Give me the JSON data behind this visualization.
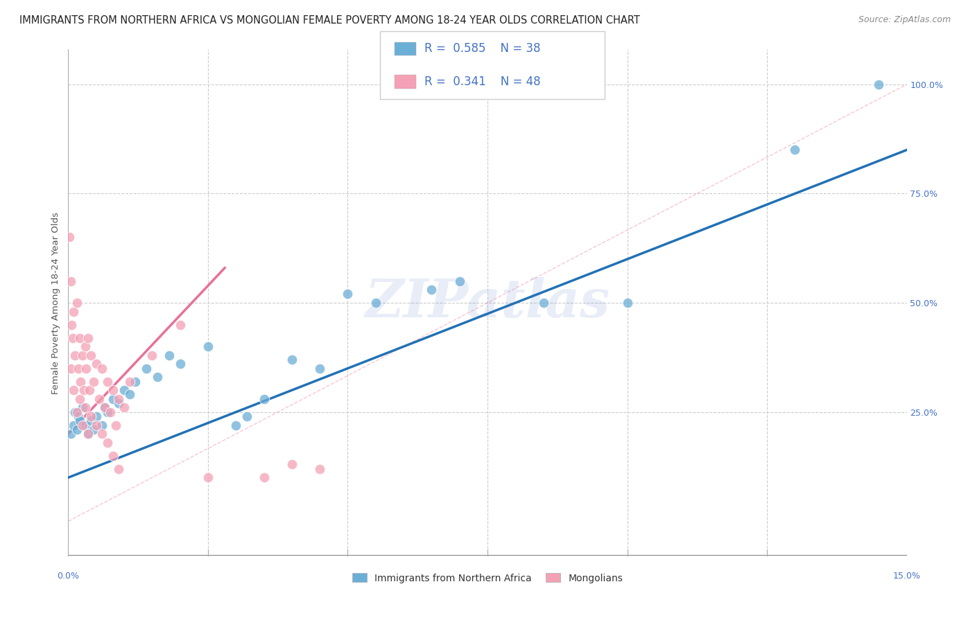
{
  "title": "IMMIGRANTS FROM NORTHERN AFRICA VS MONGOLIAN FEMALE POVERTY AMONG 18-24 YEAR OLDS CORRELATION CHART",
  "source": "Source: ZipAtlas.com",
  "ylabel": "Female Poverty Among 18-24 Year Olds",
  "yaxis_ticks": [
    "100.0%",
    "75.0%",
    "50.0%",
    "25.0%"
  ],
  "yaxis_tick_vals": [
    100,
    75,
    50,
    25
  ],
  "xlim": [
    0,
    15
  ],
  "ylim": [
    -8,
    108
  ],
  "blue_R": 0.585,
  "blue_N": 38,
  "pink_R": 0.341,
  "pink_N": 48,
  "blue_color": "#6baed6",
  "pink_color": "#f4a0b5",
  "blue_label": "Immigrants from Northern Africa",
  "pink_label": "Mongolians",
  "watermark": "ZIPatlas",
  "background_color": "#ffffff",
  "blue_scatter": [
    [
      0.05,
      20
    ],
    [
      0.1,
      22
    ],
    [
      0.12,
      25
    ],
    [
      0.15,
      21
    ],
    [
      0.18,
      24
    ],
    [
      0.2,
      23
    ],
    [
      0.25,
      26
    ],
    [
      0.3,
      22
    ],
    [
      0.35,
      20
    ],
    [
      0.4,
      23
    ],
    [
      0.45,
      21
    ],
    [
      0.5,
      24
    ],
    [
      0.6,
      22
    ],
    [
      0.65,
      26
    ],
    [
      0.7,
      25
    ],
    [
      0.8,
      28
    ],
    [
      0.9,
      27
    ],
    [
      1.0,
      30
    ],
    [
      1.1,
      29
    ],
    [
      1.2,
      32
    ],
    [
      1.4,
      35
    ],
    [
      1.6,
      33
    ],
    [
      1.8,
      38
    ],
    [
      2.0,
      36
    ],
    [
      2.5,
      40
    ],
    [
      3.0,
      22
    ],
    [
      3.5,
      28
    ],
    [
      4.0,
      37
    ],
    [
      4.5,
      35
    ],
    [
      5.0,
      52
    ],
    [
      5.5,
      50
    ],
    [
      6.5,
      53
    ],
    [
      7.0,
      55
    ],
    [
      8.5,
      50
    ],
    [
      10.0,
      50
    ],
    [
      13.0,
      85
    ],
    [
      14.5,
      100
    ],
    [
      3.2,
      24
    ]
  ],
  "pink_scatter": [
    [
      0.02,
      65
    ],
    [
      0.04,
      55
    ],
    [
      0.06,
      45
    ],
    [
      0.05,
      35
    ],
    [
      0.08,
      42
    ],
    [
      0.1,
      48
    ],
    [
      0.1,
      30
    ],
    [
      0.12,
      38
    ],
    [
      0.15,
      50
    ],
    [
      0.15,
      25
    ],
    [
      0.18,
      35
    ],
    [
      0.2,
      42
    ],
    [
      0.2,
      28
    ],
    [
      0.22,
      32
    ],
    [
      0.25,
      38
    ],
    [
      0.25,
      22
    ],
    [
      0.28,
      30
    ],
    [
      0.3,
      40
    ],
    [
      0.3,
      26
    ],
    [
      0.32,
      35
    ],
    [
      0.35,
      42
    ],
    [
      0.35,
      20
    ],
    [
      0.38,
      30
    ],
    [
      0.4,
      38
    ],
    [
      0.4,
      24
    ],
    [
      0.45,
      32
    ],
    [
      0.5,
      36
    ],
    [
      0.5,
      22
    ],
    [
      0.55,
      28
    ],
    [
      0.6,
      35
    ],
    [
      0.6,
      20
    ],
    [
      0.65,
      26
    ],
    [
      0.7,
      32
    ],
    [
      0.7,
      18
    ],
    [
      0.75,
      25
    ],
    [
      0.8,
      30
    ],
    [
      0.8,
      15
    ],
    [
      0.85,
      22
    ],
    [
      0.9,
      28
    ],
    [
      0.9,
      12
    ],
    [
      1.0,
      26
    ],
    [
      1.1,
      32
    ],
    [
      1.5,
      38
    ],
    [
      2.0,
      45
    ],
    [
      2.5,
      10
    ],
    [
      3.5,
      10
    ],
    [
      4.0,
      13
    ],
    [
      4.5,
      12
    ]
  ],
  "blue_line_x": [
    0,
    15
  ],
  "blue_line_y": [
    10,
    85
  ],
  "pink_line_x": [
    0,
    2.8
  ],
  "pink_line_y": [
    20,
    58
  ],
  "diag_line_x": [
    0,
    15
  ],
  "diag_line_y": [
    0,
    100
  ],
  "title_fontsize": 10.5,
  "source_fontsize": 9,
  "axis_label_fontsize": 9.5,
  "tick_fontsize": 9,
  "legend_fontsize": 12,
  "watermark_fontsize": 55,
  "watermark_alpha": 0.12
}
